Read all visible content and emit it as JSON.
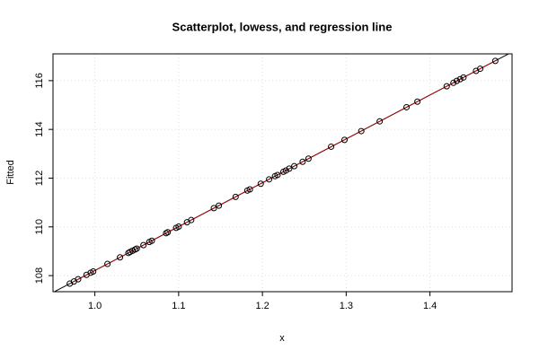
{
  "chart_data": {
    "type": "scatter",
    "title": "Scatterplot, lowess, and regression line",
    "xlabel": "x",
    "ylabel": "Fitted",
    "x": [
      0.97,
      0.975,
      0.98,
      0.99,
      0.995,
      0.998,
      1.015,
      1.03,
      1.04,
      1.042,
      1.045,
      1.048,
      1.05,
      1.058,
      1.065,
      1.068,
      1.085,
      1.087,
      1.097,
      1.1,
      1.11,
      1.115,
      1.142,
      1.148,
      1.168,
      1.182,
      1.185,
      1.198,
      1.208,
      1.215,
      1.218,
      1.225,
      1.228,
      1.232,
      1.238,
      1.248,
      1.255,
      1.282,
      1.298,
      1.318,
      1.34,
      1.372,
      1.385,
      1.42,
      1.428,
      1.432,
      1.436,
      1.44,
      1.455,
      1.46,
      1.478
    ],
    "values": [
      107.67,
      107.76,
      107.85,
      108.03,
      108.12,
      108.17,
      108.48,
      108.75,
      108.93,
      108.97,
      109.02,
      109.07,
      109.11,
      109.25,
      109.38,
      109.43,
      109.74,
      109.78,
      109.96,
      110.01,
      110.19,
      110.28,
      110.77,
      110.87,
      111.23,
      111.49,
      111.54,
      111.77,
      111.95,
      112.08,
      112.13,
      112.26,
      112.31,
      112.39,
      112.49,
      112.67,
      112.8,
      113.29,
      113.57,
      113.93,
      114.33,
      114.91,
      115.14,
      115.77,
      115.91,
      115.99,
      116.06,
      116.13,
      116.4,
      116.49,
      116.81
    ],
    "color": "#000000",
    "regression": {
      "intercept": 90.21,
      "slope": 18,
      "color": "#000000"
    },
    "lowess_color": "#cc0000",
    "xlim": [
      0.95,
      1.498
    ],
    "ylim": [
      107.34,
      117.1
    ],
    "xticks": [
      {
        "value": 1,
        "label": "1.0"
      },
      1.1,
      1.2,
      1.3,
      1.4
    ],
    "yticks": [
      108,
      110,
      112,
      114,
      116
    ],
    "grid": true
  }
}
